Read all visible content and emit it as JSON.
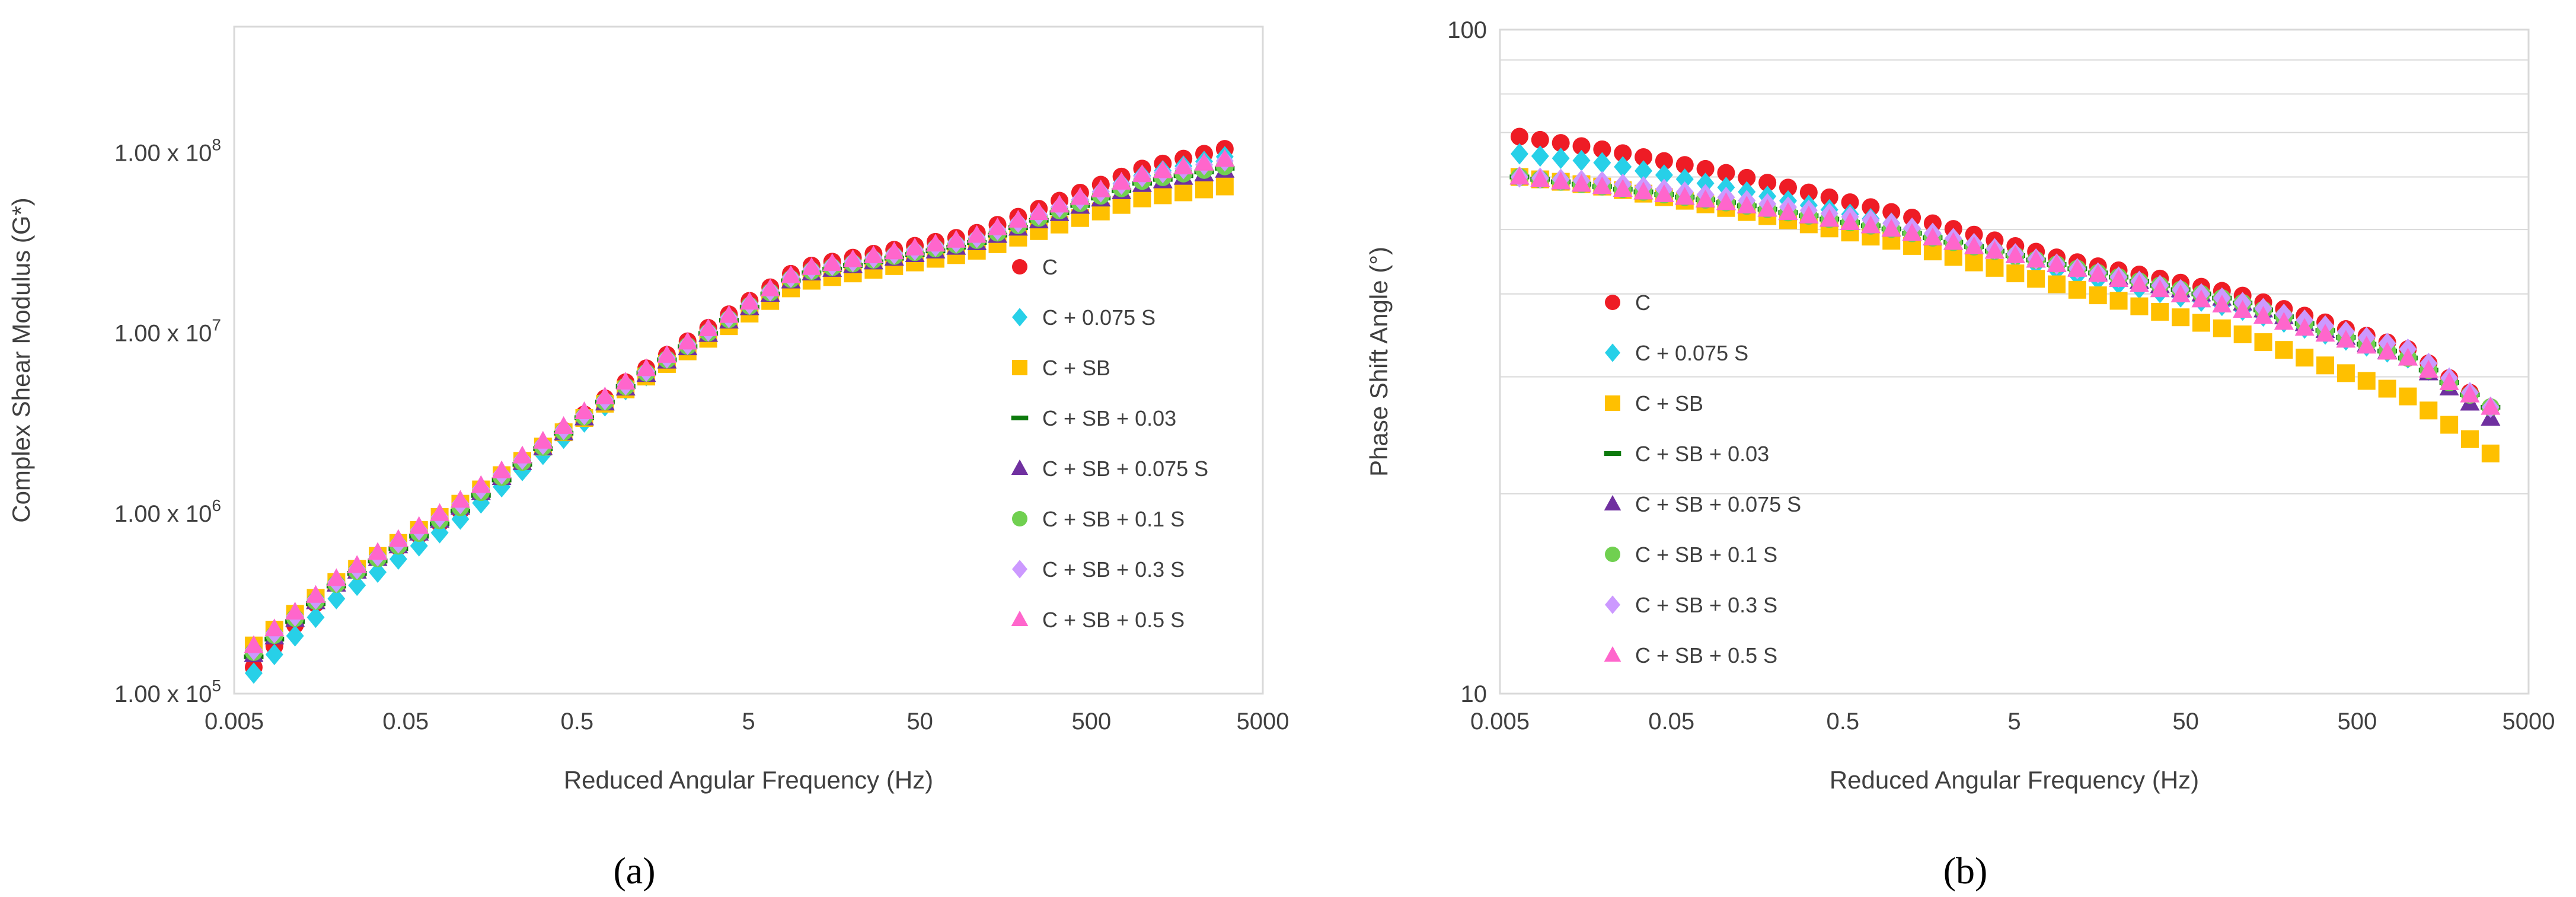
{
  "chart_data": [
    {
      "type": "scatter",
      "panel_label": "(a)",
      "xlabel": "Reduced Angular Frequency (Hz)",
      "ylabel": "Complex Shear Modulus (G*)",
      "xscale": "log",
      "yscale": "log",
      "xlim": [
        0.005,
        5000
      ],
      "ylim": [
        100000,
        500000000
      ],
      "x_ticks": [
        "0.005",
        "0.05",
        "0.5",
        "5",
        "50",
        "500",
        "5000"
      ],
      "y_ticks": [
        {
          "base": "1.00 x 10",
          "exp": "5"
        },
        {
          "base": "1.00 x 10",
          "exp": "6"
        },
        {
          "base": "1.00 x 10",
          "exp": "7"
        },
        {
          "base": "1.00 x 10",
          "exp": "8"
        }
      ],
      "grid": false,
      "legend_position": "right",
      "x_range_sampled": [
        0.0065,
        3000
      ],
      "series": [
        {
          "name": "C",
          "marker": "circle",
          "color": "#ee1c25",
          "x": [
            0.0065,
            0.02,
            0.1,
            1,
            10,
            100,
            1000,
            3000
          ],
          "y": [
            140000,
            420000,
            1000000,
            5500000,
            23000000,
            35000000,
            82000000,
            105000000
          ]
        },
        {
          "name": "C + 0.075 S",
          "marker": "diamond",
          "color": "#27d0e8",
          "x": [
            0.0065,
            0.02,
            0.1,
            1,
            10,
            100,
            1000,
            3000
          ],
          "y": [
            130000,
            340000,
            900000,
            5000000,
            21000000,
            32000000,
            75000000,
            95000000
          ]
        },
        {
          "name": "C + SB",
          "marker": "square",
          "color": "#ffc000",
          "x": [
            0.0065,
            0.02,
            0.1,
            1,
            10,
            100,
            1000,
            3000
          ],
          "y": [
            185000,
            420000,
            1100000,
            5000000,
            19000000,
            28000000,
            56000000,
            65000000
          ]
        },
        {
          "name": "C + SB + 0.03",
          "marker": "dash",
          "color": "#0d7a0d",
          "x": [
            0.0065,
            0.02,
            0.1,
            1,
            10,
            100,
            1000,
            3000
          ],
          "y": [
            160000,
            400000,
            1000000,
            5200000,
            21000000,
            31000000,
            68000000,
            82000000
          ]
        },
        {
          "name": "C + SB + 0.075 S",
          "marker": "triangle",
          "color": "#7030a0",
          "x": [
            0.0065,
            0.02,
            0.1,
            1,
            10,
            100,
            1000,
            3000
          ],
          "y": [
            165000,
            410000,
            1050000,
            5100000,
            21000000,
            31000000,
            67000000,
            80000000
          ]
        },
        {
          "name": "C + SB + 0.1 S",
          "marker": "circle",
          "color": "#70d050",
          "x": [
            0.0065,
            0.02,
            0.1,
            1,
            10,
            100,
            1000,
            3000
          ],
          "y": [
            170000,
            410000,
            1050000,
            5200000,
            21500000,
            32000000,
            70000000,
            84000000
          ]
        },
        {
          "name": "C + SB + 0.3 S",
          "marker": "diamond",
          "color": "#cc99ff",
          "x": [
            0.0065,
            0.02,
            0.1,
            1,
            10,
            100,
            1000,
            3000
          ],
          "y": [
            175000,
            420000,
            1100000,
            5300000,
            22000000,
            33000000,
            74000000,
            90000000
          ]
        },
        {
          "name": "C + SB + 0.5 S",
          "marker": "triangle",
          "color": "#ff66cc",
          "x": [
            0.0065,
            0.02,
            0.1,
            1,
            10,
            100,
            1000,
            3000
          ],
          "y": [
            185000,
            440000,
            1150000,
            5500000,
            22500000,
            34000000,
            76000000,
            92000000
          ]
        }
      ]
    },
    {
      "type": "scatter",
      "panel_label": "(b)",
      "xlabel": "Reduced Angular Frequency (Hz)",
      "ylabel": "Phase Shift Angle (°)",
      "xscale": "log",
      "yscale": "log",
      "xlim": [
        0.005,
        5000
      ],
      "ylim": [
        10,
        100
      ],
      "x_ticks": [
        "0.005",
        "0.05",
        "0.5",
        "5",
        "50",
        "500",
        "5000"
      ],
      "y_ticks": [
        "10",
        "100"
      ],
      "grid": true,
      "legend_position": "left",
      "x_range_sampled": [
        0.0065,
        3000
      ],
      "series": [
        {
          "name": "C",
          "marker": "circle",
          "color": "#ee1c25",
          "x": [
            0.0065,
            0.02,
            0.1,
            1,
            10,
            100,
            1000,
            3000
          ],
          "y": [
            69,
            66,
            61,
            53,
            45,
            40,
            33,
            27
          ]
        },
        {
          "name": "C + 0.075 S",
          "marker": "diamond",
          "color": "#27d0e8",
          "x": [
            0.0065,
            0.02,
            0.1,
            1,
            10,
            100,
            1000,
            3000
          ],
          "y": [
            65,
            63,
            58,
            51,
            43,
            38,
            32,
            27
          ]
        },
        {
          "name": "C + SB",
          "marker": "square",
          "color": "#ffc000",
          "x": [
            0.0065,
            0.02,
            0.1,
            1,
            10,
            100,
            1000,
            3000
          ],
          "y": [
            60,
            58,
            54,
            48,
            41,
            35,
            28,
            23
          ]
        },
        {
          "name": "C + SB + 0.03",
          "marker": "dash",
          "color": "#0d7a0d",
          "x": [
            0.0065,
            0.02,
            0.1,
            1,
            10,
            100,
            1000,
            3000
          ],
          "y": [
            60,
            58,
            55,
            50,
            44,
            39,
            32,
            27
          ]
        },
        {
          "name": "C + SB + 0.075 S",
          "marker": "triangle",
          "color": "#7030a0",
          "x": [
            0.0065,
            0.02,
            0.1,
            1,
            10,
            100,
            1000,
            3000
          ],
          "y": [
            60,
            58,
            55,
            50,
            44,
            39,
            32,
            26
          ]
        },
        {
          "name": "C + SB + 0.1 S",
          "marker": "circle",
          "color": "#70d050",
          "x": [
            0.0065,
            0.02,
            0.1,
            1,
            10,
            100,
            1000,
            3000
          ],
          "y": [
            60,
            58,
            55,
            50,
            44,
            39,
            32,
            27
          ]
        },
        {
          "name": "C + SB + 0.3 S",
          "marker": "diamond",
          "color": "#cc99ff",
          "x": [
            0.0065,
            0.02,
            0.1,
            1,
            10,
            100,
            1000,
            3000
          ],
          "y": [
            60,
            59,
            56,
            51,
            44,
            39,
            33,
            27
          ]
        },
        {
          "name": "C + SB + 0.5 S",
          "marker": "triangle",
          "color": "#ff66cc",
          "x": [
            0.0065,
            0.02,
            0.1,
            1,
            10,
            100,
            1000,
            3000
          ],
          "y": [
            60,
            58,
            55,
            50,
            44,
            38,
            32,
            27
          ]
        }
      ]
    }
  ]
}
